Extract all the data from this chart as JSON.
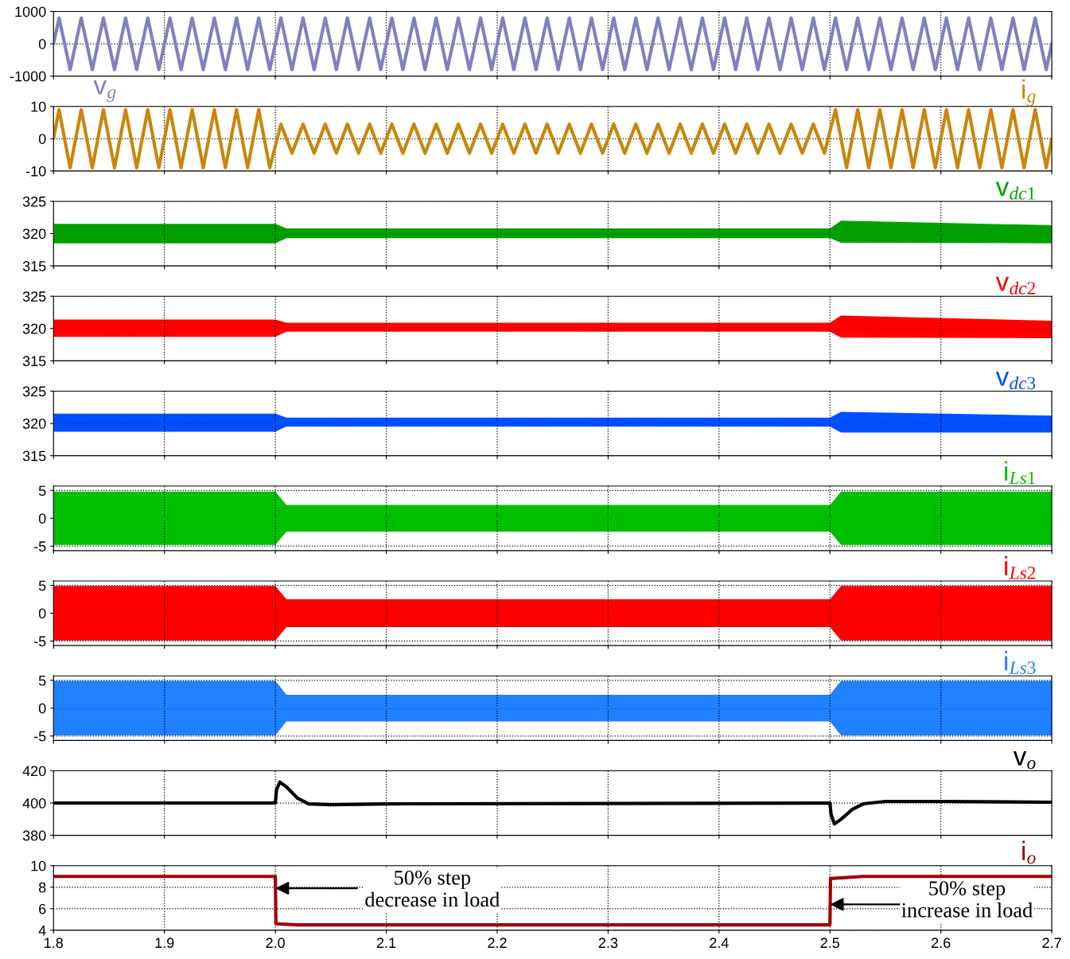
{
  "chart_data": [
    {
      "type": "line",
      "grid": true,
      "tick_labels": "y",
      "xlim": [
        1.8,
        2.7
      ],
      "xticks": [
        1.8,
        1.9,
        2.0,
        2.1,
        2.2,
        2.3,
        2.4,
        2.5,
        2.6,
        2.7
      ],
      "ylim": [
        -1000,
        1000
      ],
      "yticks": [
        -1000,
        0,
        1000
      ],
      "x": [
        1.8,
        1.805,
        1.815,
        1.825,
        1.835,
        1.845,
        1.855,
        1.865,
        1.875,
        1.885,
        1.895,
        1.905,
        1.915,
        1.925,
        1.935,
        1.945,
        1.955,
        1.965,
        1.975,
        1.985,
        1.995,
        2.005,
        2.015,
        2.025,
        2.035,
        2.045,
        2.055,
        2.065,
        2.075,
        2.085,
        2.095,
        2.105,
        2.115,
        2.125,
        2.135,
        2.145,
        2.155,
        2.165,
        2.175,
        2.185,
        2.195,
        2.205,
        2.215,
        2.225,
        2.235,
        2.245,
        2.255,
        2.265,
        2.275,
        2.285,
        2.295,
        2.305,
        2.315,
        2.325,
        2.335,
        2.345,
        2.355,
        2.365,
        2.375,
        2.385,
        2.395,
        2.405,
        2.415,
        2.425,
        2.435,
        2.445,
        2.455,
        2.465,
        2.475,
        2.485,
        2.495,
        2.505,
        2.515,
        2.525,
        2.535,
        2.545,
        2.555,
        2.565,
        2.575,
        2.585,
        2.595,
        2.605,
        2.615,
        2.625,
        2.635,
        2.645,
        2.655,
        2.665,
        2.675,
        2.685,
        2.695,
        2.7
      ],
      "series": [
        {
          "name": "v$_{g}$",
          "color": "#8080c0",
          "values": [
            0,
            800,
            -800,
            800,
            -800,
            800,
            -800,
            800,
            -800,
            800,
            -800,
            800,
            -800,
            800,
            -800,
            800,
            -800,
            800,
            -800,
            800,
            -800,
            800,
            -800,
            800,
            -800,
            800,
            -800,
            800,
            -800,
            800,
            -800,
            800,
            -800,
            800,
            -800,
            800,
            -800,
            800,
            -800,
            800,
            -800,
            800,
            -800,
            800,
            -800,
            800,
            -800,
            800,
            -800,
            800,
            -800,
            800,
            -800,
            800,
            -800,
            800,
            -800,
            800,
            -800,
            800,
            -800,
            800,
            -800,
            800,
            -800,
            800,
            -800,
            800,
            -800,
            800,
            -800,
            800,
            -800,
            800,
            -800,
            800,
            -800,
            800,
            -800,
            800,
            -800,
            800,
            -800,
            800,
            -800,
            800,
            -800,
            800,
            -800,
            800,
            -800,
            0
          ]
        }
      ]
    },
    {
      "type": "line",
      "grid": true,
      "tick_labels": "y",
      "xlim": [
        1.8,
        2.7
      ],
      "xticks": [
        1.8,
        1.9,
        2.0,
        2.1,
        2.2,
        2.3,
        2.4,
        2.5,
        2.6,
        2.7
      ],
      "ylim": [
        -10,
        10
      ],
      "yticks": [
        -10,
        0,
        10
      ],
      "x": [
        1.8,
        1.805,
        1.815,
        1.825,
        1.835,
        1.845,
        1.855,
        1.865,
        1.875,
        1.885,
        1.895,
        1.905,
        1.915,
        1.925,
        1.935,
        1.945,
        1.955,
        1.965,
        1.975,
        1.985,
        1.995,
        2.005,
        2.015,
        2.025,
        2.035,
        2.045,
        2.055,
        2.065,
        2.075,
        2.085,
        2.095,
        2.105,
        2.115,
        2.125,
        2.135,
        2.145,
        2.155,
        2.165,
        2.175,
        2.185,
        2.195,
        2.205,
        2.215,
        2.225,
        2.235,
        2.245,
        2.255,
        2.265,
        2.275,
        2.285,
        2.295,
        2.305,
        2.315,
        2.325,
        2.335,
        2.345,
        2.355,
        2.365,
        2.375,
        2.385,
        2.395,
        2.405,
        2.415,
        2.425,
        2.435,
        2.445,
        2.455,
        2.465,
        2.475,
        2.485,
        2.495,
        2.505,
        2.515,
        2.525,
        2.535,
        2.545,
        2.555,
        2.565,
        2.575,
        2.585,
        2.595,
        2.605,
        2.615,
        2.625,
        2.635,
        2.645,
        2.655,
        2.665,
        2.675,
        2.685,
        2.695,
        2.7
      ],
      "series": [
        {
          "name": "i$_{g}$",
          "color": "#c8860a",
          "values": [
            0,
            9,
            -9,
            9,
            -9,
            9,
            -9,
            9,
            -9,
            9,
            -9,
            9,
            -9,
            9,
            -9,
            9,
            -9,
            9,
            -9,
            9,
            -9,
            4.5,
            -4.5,
            4.5,
            -4.5,
            4.5,
            -4.5,
            4.5,
            -4.5,
            4.5,
            -4.5,
            4.5,
            -4.5,
            4.5,
            -4.5,
            4.5,
            -4.5,
            4.5,
            -4.5,
            4.5,
            -4.5,
            4.5,
            -4.5,
            4.5,
            -4.5,
            4.5,
            -4.5,
            4.5,
            -4.5,
            4.5,
            -4.5,
            4.5,
            -4.5,
            4.5,
            -4.5,
            4.5,
            -4.5,
            4.5,
            -4.5,
            4.5,
            -4.5,
            4.5,
            -4.5,
            4.5,
            -4.5,
            4.5,
            -4.5,
            4.5,
            -4.5,
            4.5,
            -4.5,
            9,
            -9,
            9,
            -9,
            9,
            -9,
            9,
            -9,
            9,
            -9,
            9,
            -9,
            9,
            -9,
            9,
            -9,
            9,
            -9,
            9,
            -9,
            0
          ]
        }
      ]
    },
    {
      "type": "line",
      "grid": true,
      "tick_labels": "y",
      "xlim": [
        1.8,
        2.7
      ],
      "xticks": [
        1.8,
        1.9,
        2.0,
        2.1,
        2.2,
        2.3,
        2.4,
        2.5,
        2.6,
        2.7
      ],
      "ylim": [
        315,
        325
      ],
      "yticks": [
        315,
        320,
        325
      ],
      "x": [
        1.8,
        2.0,
        2.01,
        2.5,
        2.51,
        2.7
      ],
      "series": [
        {
          "name": "v$_{dc1}$",
          "color": "#00a000",
          "values": [
            320,
            320,
            320,
            320,
            320,
            320
          ],
          "lower": [
            318.5,
            318.5,
            319.3,
            319.3,
            318.6,
            318.5
          ],
          "upper": [
            321.5,
            321.5,
            320.8,
            320.8,
            322,
            321.3
          ]
        }
      ]
    },
    {
      "type": "line",
      "grid": true,
      "tick_labels": "y",
      "xlim": [
        1.8,
        2.7
      ],
      "xticks": [
        1.8,
        1.9,
        2.0,
        2.1,
        2.2,
        2.3,
        2.4,
        2.5,
        2.6,
        2.7
      ],
      "ylim": [
        315,
        325
      ],
      "yticks": [
        315,
        320,
        325
      ],
      "x": [
        1.8,
        2.0,
        2.01,
        2.5,
        2.51,
        2.7
      ],
      "series": [
        {
          "name": "v$_{dc2}$",
          "color": "#ff0000",
          "values": [
            320,
            320,
            320,
            320,
            320,
            320
          ],
          "lower": [
            318.7,
            318.7,
            319.5,
            319.5,
            318.6,
            318.5
          ],
          "upper": [
            321.4,
            321.4,
            320.9,
            320.9,
            322,
            321.2
          ]
        }
      ]
    },
    {
      "type": "line",
      "grid": true,
      "tick_labels": "y",
      "xlim": [
        1.8,
        2.7
      ],
      "xticks": [
        1.8,
        1.9,
        2.0,
        2.1,
        2.2,
        2.3,
        2.4,
        2.5,
        2.6,
        2.7
      ],
      "ylim": [
        315,
        325
      ],
      "yticks": [
        315,
        320,
        325
      ],
      "x": [
        1.8,
        2.0,
        2.01,
        2.5,
        2.51,
        2.7
      ],
      "series": [
        {
          "name": "v$_{dc3}$",
          "color": "#0050ff",
          "values": [
            320,
            320,
            320,
            320,
            320,
            320
          ],
          "lower": [
            318.7,
            318.7,
            319.5,
            319.5,
            318.6,
            318.6
          ],
          "upper": [
            321.5,
            321.5,
            320.9,
            320.9,
            321.8,
            321.2
          ]
        }
      ]
    },
    {
      "type": "line",
      "grid": true,
      "tick_labels": "y",
      "xlim": [
        1.8,
        2.7
      ],
      "xticks": [
        1.8,
        1.9,
        2.0,
        2.1,
        2.2,
        2.3,
        2.4,
        2.5,
        2.6,
        2.7
      ],
      "ylim": [
        -5.8,
        5.8
      ],
      "yticks": [
        -5,
        0,
        5
      ],
      "x": [
        1.8,
        2.0,
        2.01,
        2.5,
        2.51,
        2.7
      ],
      "series": [
        {
          "name": "i$_{Ls1}$",
          "color": "#00c000",
          "values": [
            0,
            0,
            0,
            0,
            0,
            0
          ],
          "lower": [
            -4.8,
            -4.8,
            -2.4,
            -2.4,
            -4.8,
            -4.8
          ],
          "upper": [
            4.8,
            4.8,
            2.4,
            2.4,
            4.8,
            4.8
          ]
        }
      ]
    },
    {
      "type": "line",
      "grid": true,
      "tick_labels": "y",
      "xlim": [
        1.8,
        2.7
      ],
      "xticks": [
        1.8,
        1.9,
        2.0,
        2.1,
        2.2,
        2.3,
        2.4,
        2.5,
        2.6,
        2.7
      ],
      "ylim": [
        -5.8,
        5.8
      ],
      "yticks": [
        -5,
        0,
        5
      ],
      "x": [
        1.8,
        2.0,
        2.01,
        2.5,
        2.51,
        2.7
      ],
      "series": [
        {
          "name": "i$_{Ls2}$",
          "color": "#ff0000",
          "values": [
            0,
            0,
            0,
            0,
            0,
            0
          ],
          "lower": [
            -4.9,
            -4.9,
            -2.5,
            -2.5,
            -4.9,
            -4.9
          ],
          "upper": [
            4.9,
            4.9,
            2.5,
            2.5,
            4.9,
            4.9
          ]
        }
      ]
    },
    {
      "type": "line",
      "grid": true,
      "tick_labels": "y",
      "xlim": [
        1.8,
        2.7
      ],
      "xticks": [
        1.8,
        1.9,
        2.0,
        2.1,
        2.2,
        2.3,
        2.4,
        2.5,
        2.6,
        2.7
      ],
      "ylim": [
        -5.8,
        5.8
      ],
      "yticks": [
        -5,
        0,
        5
      ],
      "x": [
        1.8,
        2.0,
        2.01,
        2.5,
        2.51,
        2.7
      ],
      "series": [
        {
          "name": "i$_{Ls3}$",
          "color": "#2080ff",
          "values": [
            0,
            0,
            0,
            0,
            0,
            0
          ],
          "lower": [
            -4.9,
            -4.9,
            -2.4,
            -2.4,
            -4.9,
            -4.9
          ],
          "upper": [
            4.9,
            4.9,
            2.4,
            2.4,
            4.9,
            4.9
          ]
        }
      ]
    },
    {
      "type": "line",
      "grid": true,
      "tick_labels": "y",
      "xlim": [
        1.8,
        2.7
      ],
      "xticks": [
        1.8,
        1.9,
        2.0,
        2.1,
        2.2,
        2.3,
        2.4,
        2.5,
        2.6,
        2.7
      ],
      "ylim": [
        380,
        420
      ],
      "yticks": [
        380,
        400,
        420
      ],
      "x": [
        1.8,
        2.0,
        2.001,
        2.004,
        2.01,
        2.02,
        2.03,
        2.05,
        2.1,
        2.5,
        2.501,
        2.504,
        2.51,
        2.52,
        2.53,
        2.55,
        2.6,
        2.7
      ],
      "series": [
        {
          "name": "v$_{o}$",
          "color": "#000000",
          "values": [
            400,
            400,
            408,
            413,
            410,
            403,
            399.5,
            399,
            399.5,
            400,
            393,
            387,
            390,
            396,
            399.5,
            401,
            401,
            400.5
          ]
        }
      ]
    },
    {
      "type": "line",
      "grid": true,
      "xlim": [
        1.8,
        2.7
      ],
      "xticks": [
        1.8,
        1.9,
        {
          "value": 2,
          "label": "2.0"
        },
        2.1,
        2.2,
        2.3,
        2.4,
        2.5,
        2.6,
        2.7
      ],
      "ylim": [
        4,
        10
      ],
      "yticks": [
        4,
        6,
        8,
        10
      ],
      "x": [
        1.8,
        2.0,
        2.0005,
        2.02,
        2.5,
        2.5005,
        2.53,
        2.7
      ],
      "series": [
        {
          "name": "i$_{o}$",
          "color": "#a00000",
          "values": [
            9,
            9,
            4.6,
            4.5,
            4.5,
            8.8,
            9,
            9
          ]
        }
      ],
      "annotations": [
        {
          "text": "50% step\ndecrease in load",
          "x": 2.0,
          "y": 7.9
        },
        {
          "text": "50% step\nincrease in load",
          "x": 2.5,
          "y": 6.4
        }
      ]
    }
  ]
}
